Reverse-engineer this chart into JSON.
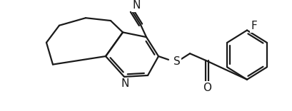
{
  "bg_color": "#ffffff",
  "line_color": "#1a1a1a",
  "line_width": 1.6,
  "figsize": [
    4.09,
    1.56
  ],
  "dpi": 100,
  "xlim": [
    0,
    409
  ],
  "ylim": [
    0,
    156
  ]
}
